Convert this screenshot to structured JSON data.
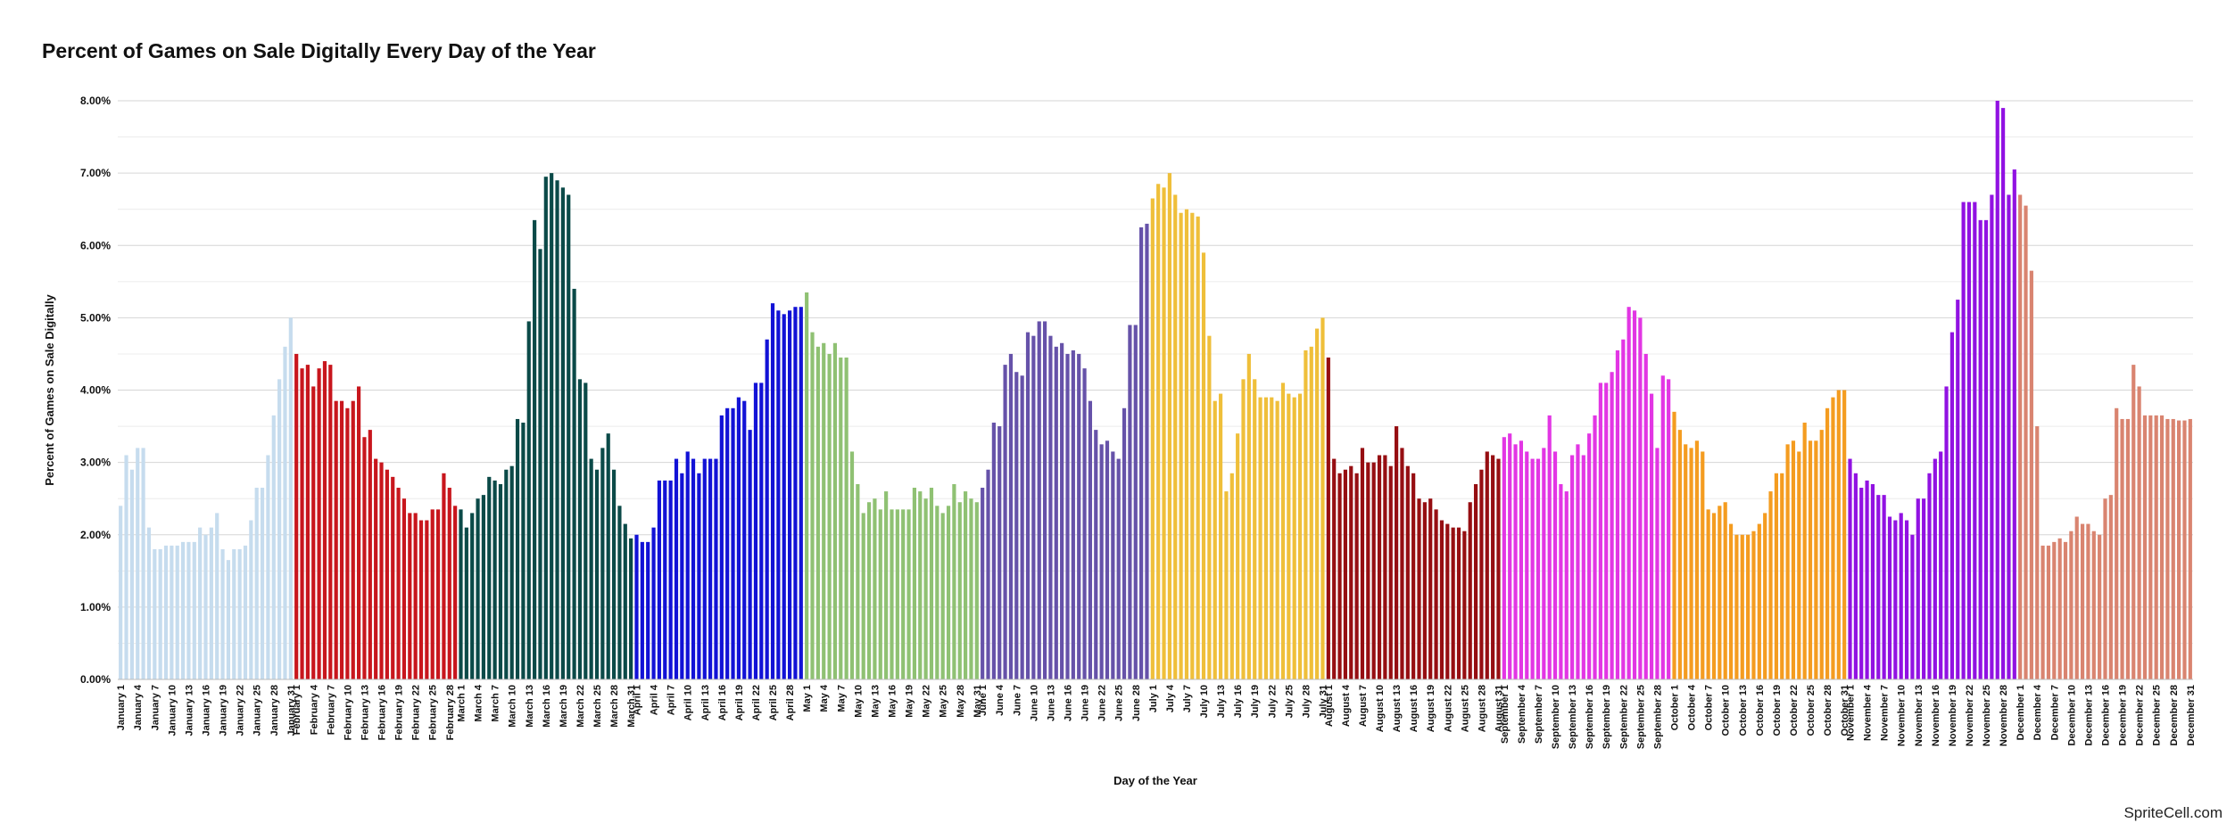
{
  "watermark": "SpriteCell.com",
  "chart_data": {
    "type": "bar",
    "title": "Percent of Games on Sale Digitally Every Day of the Year",
    "xlabel": "Day of the Year",
    "ylabel": "Percent of Games on Sale Digitally",
    "ylim": [
      0,
      8
    ],
    "y_ticks": [
      0,
      1,
      2,
      3,
      4,
      5,
      6,
      7,
      8
    ],
    "y_tick_format": "percent_2dp",
    "grid": true,
    "legend": "none",
    "x_tick_every": 3,
    "months": [
      {
        "name": "January",
        "color": "#c6dcee",
        "values": [
          2.4,
          3.1,
          2.9,
          3.2,
          3.2,
          2.1,
          1.8,
          1.8,
          1.85,
          1.85,
          1.85,
          1.9,
          1.9,
          1.9,
          2.1,
          2.0,
          2.1,
          2.3,
          1.8,
          1.65,
          1.8,
          1.8,
          1.85,
          2.2,
          2.65,
          2.65,
          3.1,
          3.65,
          4.15,
          4.6,
          5.0
        ]
      },
      {
        "name": "February",
        "color": "#c8161d",
        "values": [
          4.5,
          4.3,
          4.35,
          4.05,
          4.3,
          4.4,
          4.35,
          3.85,
          3.85,
          3.75,
          3.85,
          4.05,
          3.35,
          3.45,
          3.05,
          3.0,
          2.9,
          2.8,
          2.65,
          2.5,
          2.3,
          2.3,
          2.2,
          2.2,
          2.35,
          2.35,
          2.85,
          2.65,
          2.4
        ]
      },
      {
        "name": "March",
        "color": "#0b4a48",
        "values": [
          2.35,
          2.1,
          2.3,
          2.5,
          2.55,
          2.8,
          2.75,
          2.7,
          2.9,
          2.95,
          3.6,
          3.55,
          4.95,
          6.35,
          5.95,
          6.95,
          7.0,
          6.9,
          6.8,
          6.7,
          5.4,
          4.15,
          4.1,
          3.05,
          2.9,
          3.2,
          3.4,
          2.9,
          2.4,
          2.15,
          1.95
        ]
      },
      {
        "name": "April",
        "color": "#1212d6",
        "values": [
          2.0,
          1.9,
          1.9,
          2.1,
          2.75,
          2.75,
          2.75,
          3.05,
          2.85,
          3.15,
          3.05,
          2.85,
          3.05,
          3.05,
          3.05,
          3.65,
          3.75,
          3.75,
          3.9,
          3.85,
          3.45,
          4.1,
          4.1,
          4.7,
          5.2,
          5.1,
          5.05,
          5.1,
          5.15,
          5.15
        ]
      },
      {
        "name": "May",
        "color": "#8fc173",
        "values": [
          5.35,
          4.8,
          4.6,
          4.65,
          4.5,
          4.65,
          4.45,
          4.45,
          3.15,
          2.7,
          2.3,
          2.45,
          2.5,
          2.35,
          2.6,
          2.35,
          2.35,
          2.35,
          2.35,
          2.65,
          2.6,
          2.5,
          2.65,
          2.4,
          2.3,
          2.4,
          2.7,
          2.45,
          2.6,
          2.5,
          2.45
        ]
      },
      {
        "name": "June",
        "color": "#6652a9",
        "values": [
          2.65,
          2.9,
          3.55,
          3.5,
          4.35,
          4.5,
          4.25,
          4.2,
          4.8,
          4.75,
          4.95,
          4.95,
          4.75,
          4.6,
          4.65,
          4.5,
          4.55,
          4.5,
          4.3,
          3.85,
          3.45,
          3.25,
          3.3,
          3.15,
          3.05,
          3.75,
          4.9,
          4.9,
          6.25,
          6.3
        ]
      },
      {
        "name": "July",
        "color": "#efbf3a",
        "values": [
          6.65,
          6.85,
          6.8,
          7.0,
          6.7,
          6.45,
          6.5,
          6.45,
          6.4,
          5.9,
          4.75,
          3.85,
          3.95,
          2.6,
          2.85,
          3.4,
          4.15,
          4.5,
          4.15,
          3.9,
          3.9,
          3.9,
          3.85,
          4.1,
          3.95,
          3.9,
          3.95,
          4.55,
          4.6,
          4.85,
          5.0
        ]
      },
      {
        "name": "August",
        "color": "#960e12",
        "values": [
          4.45,
          3.05,
          2.85,
          2.9,
          2.95,
          2.85,
          3.2,
          3.0,
          3.0,
          3.1,
          3.1,
          2.95,
          3.5,
          3.2,
          2.95,
          2.85,
          2.5,
          2.45,
          2.5,
          2.35,
          2.2,
          2.15,
          2.1,
          2.1,
          2.05,
          2.45,
          2.7,
          2.9,
          3.15,
          3.1,
          3.05
        ]
      },
      {
        "name": "September",
        "color": "#e236e4",
        "values": [
          3.35,
          3.4,
          3.25,
          3.3,
          3.15,
          3.05,
          3.05,
          3.2,
          3.65,
          3.15,
          2.7,
          2.6,
          3.1,
          3.25,
          3.1,
          3.4,
          3.65,
          4.1,
          4.1,
          4.25,
          4.55,
          4.7,
          5.15,
          5.1,
          5.0,
          4.5,
          3.95,
          3.2,
          4.2,
          4.15
        ]
      },
      {
        "name": "October",
        "color": "#f49c20",
        "values": [
          3.7,
          3.45,
          3.25,
          3.2,
          3.3,
          3.15,
          2.35,
          2.3,
          2.4,
          2.45,
          2.15,
          2.0,
          2.0,
          2.0,
          2.05,
          2.15,
          2.3,
          2.6,
          2.85,
          2.85,
          3.25,
          3.3,
          3.15,
          3.55,
          3.3,
          3.3,
          3.45,
          3.75,
          3.9,
          4.0,
          4.0
        ]
      },
      {
        "name": "November",
        "color": "#9112e2",
        "values": [
          3.05,
          2.85,
          2.65,
          2.75,
          2.7,
          2.55,
          2.55,
          2.25,
          2.2,
          2.3,
          2.2,
          2.0,
          2.5,
          2.5,
          2.85,
          3.05,
          3.15,
          4.05,
          4.8,
          5.25,
          6.6,
          6.6,
          6.6,
          6.35,
          6.35,
          6.7,
          8.0,
          7.9,
          6.7,
          7.05
        ]
      },
      {
        "name": "December",
        "color": "#d98470",
        "values": [
          6.7,
          6.55,
          5.65,
          3.5,
          1.85,
          1.85,
          1.9,
          1.95,
          1.9,
          2.05,
          2.25,
          2.15,
          2.15,
          2.05,
          2.0,
          2.5,
          2.55,
          3.75,
          3.6,
          3.6,
          4.35,
          4.05,
          3.65,
          3.65,
          3.65,
          3.65,
          3.6,
          3.6,
          3.58,
          3.58,
          3.6
        ]
      }
    ]
  }
}
